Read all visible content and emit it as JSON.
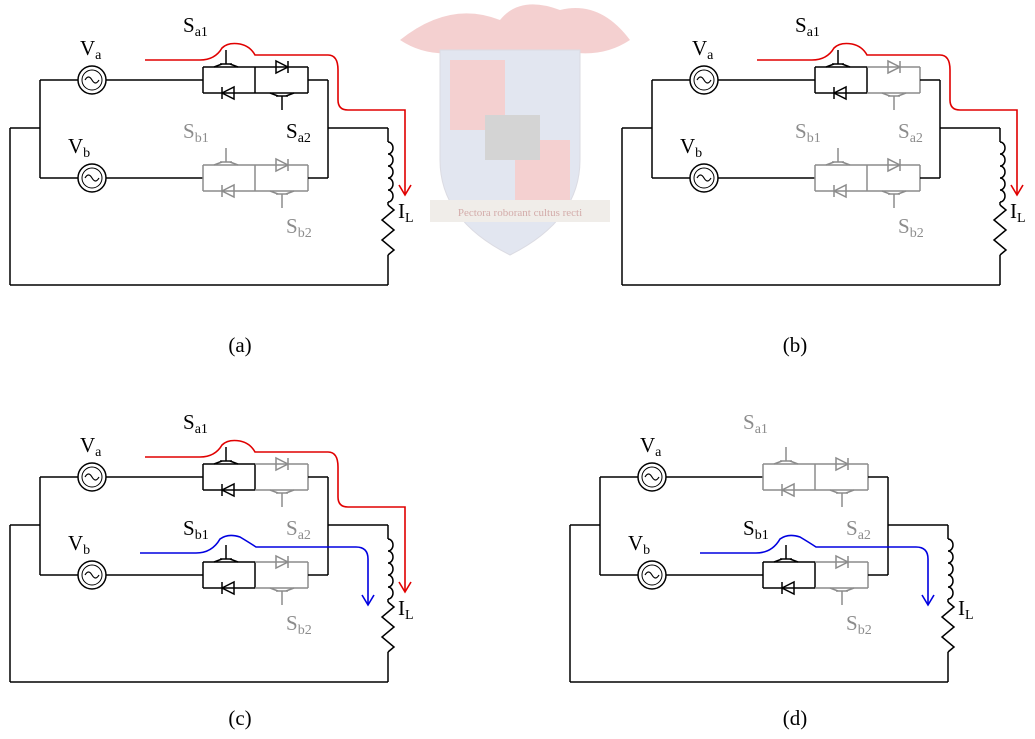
{
  "watermark": "Pectora roborant cultus recti",
  "panels": [
    {
      "caption": "(a)",
      "sources": [
        {
          "base": "V",
          "sub": "a"
        },
        {
          "base": "V",
          "sub": "b"
        }
      ],
      "switches": [
        {
          "base": "S",
          "sub": "a1",
          "color": "#000000"
        },
        {
          "base": "S",
          "sub": "a2",
          "color": "#000000"
        },
        {
          "base": "S",
          "sub": "b1",
          "color": "#8c8c8c"
        },
        {
          "base": "S",
          "sub": "b2",
          "color": "#8c8c8c"
        }
      ],
      "load": {
        "base": "I",
        "sub": "L"
      },
      "currents": [
        {
          "color": "#e00000"
        }
      ]
    },
    {
      "caption": "(b)",
      "sources": [
        {
          "base": "V",
          "sub": "a"
        },
        {
          "base": "V",
          "sub": "b"
        }
      ],
      "switches": [
        {
          "base": "S",
          "sub": "a1",
          "color": "#000000"
        },
        {
          "base": "S",
          "sub": "a2",
          "color": "#8c8c8c"
        },
        {
          "base": "S",
          "sub": "b1",
          "color": "#8c8c8c"
        },
        {
          "base": "S",
          "sub": "b2",
          "color": "#8c8c8c"
        }
      ],
      "load": {
        "base": "I",
        "sub": "L"
      },
      "currents": [
        {
          "color": "#e00000"
        }
      ]
    },
    {
      "caption": "(c)",
      "sources": [
        {
          "base": "V",
          "sub": "a"
        },
        {
          "base": "V",
          "sub": "b"
        }
      ],
      "switches": [
        {
          "base": "S",
          "sub": "a1",
          "color": "#000000"
        },
        {
          "base": "S",
          "sub": "a2",
          "color": "#8c8c8c"
        },
        {
          "base": "S",
          "sub": "b1",
          "color": "#000000"
        },
        {
          "base": "S",
          "sub": "b2",
          "color": "#8c8c8c"
        }
      ],
      "load": {
        "base": "I",
        "sub": "L"
      },
      "currents": [
        {
          "color": "#e00000"
        },
        {
          "color": "#0000e0"
        }
      ]
    },
    {
      "caption": "(d)",
      "sources": [
        {
          "base": "V",
          "sub": "a"
        },
        {
          "base": "V",
          "sub": "b"
        }
      ],
      "switches": [
        {
          "base": "S",
          "sub": "a1",
          "color": "#8c8c8c"
        },
        {
          "base": "S",
          "sub": "a2",
          "color": "#8c8c8c"
        },
        {
          "base": "S",
          "sub": "b1",
          "color": "#000000"
        },
        {
          "base": "S",
          "sub": "b2",
          "color": "#8c8c8c"
        }
      ],
      "load": {
        "base": "I",
        "sub": "L"
      },
      "currents": [
        {
          "color": "#0000e0"
        }
      ]
    }
  ]
}
